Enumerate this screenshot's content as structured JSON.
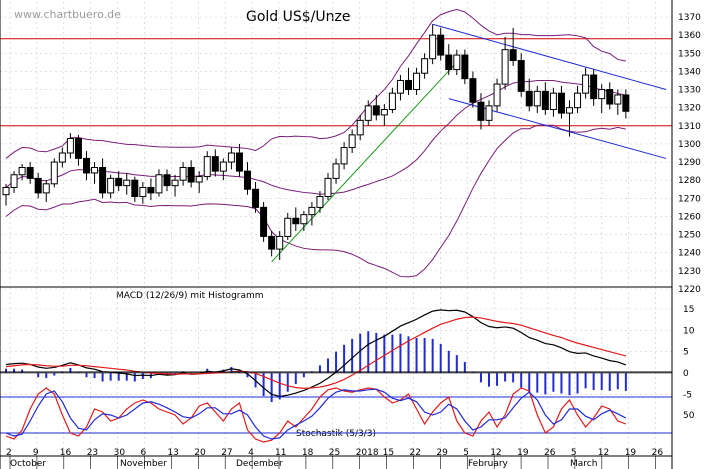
{
  "chart_data": [
    {
      "type": "candlestick",
      "title": "Gold US$/Unze",
      "watermark": "www.chartbuero.de",
      "ylim": [
        1220,
        1375
      ],
      "yticks": [
        1220,
        1230,
        1240,
        1250,
        1260,
        1270,
        1280,
        1290,
        1300,
        1310,
        1320,
        1330,
        1340,
        1350,
        1360,
        1370
      ],
      "overlays": [
        "bollinger-bands",
        "moving-average"
      ],
      "horizontal_lines": [
        1310,
        1358
      ],
      "trendlines": [
        "uptrend-green",
        "channel-upper-blue",
        "channel-lower-blue"
      ],
      "candles": [
        [
          1272,
          1278,
          1266,
          1276
        ],
        [
          1276,
          1285,
          1273,
          1283
        ],
        [
          1283,
          1289,
          1280,
          1287
        ],
        [
          1287,
          1290,
          1278,
          1281
        ],
        [
          1281,
          1284,
          1270,
          1273
        ],
        [
          1273,
          1280,
          1268,
          1278
        ],
        [
          1278,
          1292,
          1276,
          1290
        ],
        [
          1290,
          1298,
          1287,
          1295
        ],
        [
          1295,
          1306,
          1292,
          1303
        ],
        [
          1303,
          1305,
          1288,
          1292
        ],
        [
          1292,
          1296,
          1280,
          1284
        ],
        [
          1284,
          1290,
          1278,
          1287
        ],
        [
          1287,
          1292,
          1270,
          1273
        ],
        [
          1273,
          1283,
          1270,
          1281
        ],
        [
          1281,
          1285,
          1274,
          1277
        ],
        [
          1277,
          1284,
          1272,
          1280
        ],
        [
          1280,
          1282,
          1268,
          1271
        ],
        [
          1271,
          1279,
          1267,
          1276
        ],
        [
          1276,
          1281,
          1269,
          1273
        ],
        [
          1273,
          1286,
          1271,
          1283
        ],
        [
          1283,
          1286,
          1274,
          1277
        ],
        [
          1277,
          1283,
          1271,
          1280
        ],
        [
          1280,
          1290,
          1277,
          1287
        ],
        [
          1287,
          1291,
          1276,
          1279
        ],
        [
          1279,
          1285,
          1273,
          1282
        ],
        [
          1282,
          1296,
          1280,
          1293
        ],
        [
          1293,
          1297,
          1282,
          1285
        ],
        [
          1285,
          1292,
          1280,
          1290
        ],
        [
          1290,
          1298,
          1286,
          1295
        ],
        [
          1295,
          1300,
          1282,
          1285
        ],
        [
          1285,
          1290,
          1272,
          1275
        ],
        [
          1275,
          1279,
          1262,
          1265
        ],
        [
          1265,
          1268,
          1246,
          1249
        ],
        [
          1249,
          1252,
          1238,
          1242
        ],
        [
          1242,
          1252,
          1236,
          1249
        ],
        [
          1249,
          1262,
          1247,
          1259
        ],
        [
          1259,
          1265,
          1252,
          1256
        ],
        [
          1256,
          1263,
          1252,
          1261
        ],
        [
          1261,
          1268,
          1255,
          1265
        ],
        [
          1265,
          1274,
          1262,
          1271
        ],
        [
          1271,
          1284,
          1269,
          1281
        ],
        [
          1281,
          1292,
          1278,
          1289
        ],
        [
          1289,
          1301,
          1286,
          1298
        ],
        [
          1298,
          1308,
          1295,
          1305
        ],
        [
          1305,
          1316,
          1302,
          1313
        ],
        [
          1313,
          1324,
          1310,
          1321
        ],
        [
          1321,
          1327,
          1313,
          1316
        ],
        [
          1316,
          1322,
          1310,
          1319
        ],
        [
          1319,
          1331,
          1317,
          1328
        ],
        [
          1328,
          1338,
          1324,
          1335
        ],
        [
          1335,
          1342,
          1327,
          1330
        ],
        [
          1330,
          1342,
          1327,
          1339
        ],
        [
          1339,
          1350,
          1336,
          1347
        ],
        [
          1347,
          1366,
          1344,
          1360
        ],
        [
          1360,
          1364,
          1346,
          1349
        ],
        [
          1349,
          1355,
          1338,
          1341
        ],
        [
          1341,
          1352,
          1338,
          1349
        ],
        [
          1349,
          1352,
          1333,
          1336
        ],
        [
          1336,
          1340,
          1320,
          1323
        ],
        [
          1323,
          1328,
          1308,
          1313
        ],
        [
          1313,
          1324,
          1310,
          1321
        ],
        [
          1321,
          1336,
          1318,
          1333
        ],
        [
          1333,
          1359,
          1330,
          1352
        ],
        [
          1352,
          1364,
          1343,
          1346
        ],
        [
          1346,
          1350,
          1326,
          1329
        ],
        [
          1329,
          1336,
          1318,
          1321
        ],
        [
          1321,
          1332,
          1317,
          1329
        ],
        [
          1329,
          1334,
          1316,
          1319
        ],
        [
          1319,
          1331,
          1315,
          1328
        ],
        [
          1328,
          1332,
          1314,
          1317
        ],
        [
          1317,
          1324,
          1304,
          1320
        ],
        [
          1320,
          1332,
          1317,
          1328
        ],
        [
          1328,
          1342,
          1325,
          1338
        ],
        [
          1338,
          1341,
          1321,
          1325
        ],
        [
          1325,
          1333,
          1317,
          1330
        ],
        [
          1330,
          1334,
          1319,
          1322
        ],
        [
          1322,
          1330,
          1316,
          1327
        ],
        [
          1327,
          1330,
          1314,
          1318
        ]
      ],
      "x_tick_labels": [
        "2",
        "9",
        "16",
        "23",
        "30",
        "6",
        "13",
        "20",
        "27",
        "4",
        "11",
        "18",
        "25",
        "2018",
        "15",
        "22",
        "29",
        "5",
        "12",
        "19",
        "26",
        "5",
        "12",
        "19",
        "26"
      ],
      "month_labels": [
        "October",
        "November",
        "December",
        "February",
        "March"
      ]
    },
    {
      "type": "line",
      "title": "MACD (12/26/9) mit Histogramm",
      "ylim": [
        -8,
        18
      ],
      "yticks": [
        -5,
        0,
        5,
        10,
        15
      ],
      "series": [
        {
          "color": "#000000",
          "values": [
            2,
            2.2,
            2.3,
            2,
            1.4,
            1.1,
            1.3,
            1.8,
            2.4,
            1.9,
            1.2,
            0.9,
            0.3,
            0.2,
            0,
            -0.2,
            -0.6,
            -0.5,
            -0.6,
            -0.3,
            -0.5,
            -0.4,
            0,
            -0.3,
            -0.2,
            0.4,
            0.2,
            0.5,
            1,
            0.7,
            -0.2,
            -1.8,
            -3.5,
            -5,
            -5.5,
            -5.2,
            -4.7,
            -4.1,
            -3.3,
            -2.4,
            -1.2,
            0.2,
            1.8,
            3.5,
            5.2,
            6.7,
            7.7,
            8.6,
            9.8,
            11,
            11.8,
            12.6,
            13.6,
            14.5,
            14.8,
            14.6,
            14.7,
            14.3,
            13.2,
            11.8,
            10.9,
            10.6,
            10.8,
            10.5,
            9.5,
            8.3,
            7.7,
            6.9,
            6.6,
            5.9,
            5,
            4.6,
            4.7,
            4,
            3.5,
            2.9,
            2.6,
            1.9
          ]
        },
        {
          "color": "#e11b1b",
          "values": [
            1.5,
            1.7,
            1.9,
            2,
            1.9,
            1.7,
            1.6,
            1.6,
            1.8,
            1.8,
            1.7,
            1.5,
            1.3,
            1.1,
            0.9,
            0.7,
            0.4,
            0.2,
            0,
            -0.1,
            -0.2,
            -0.3,
            -0.2,
            -0.2,
            -0.2,
            -0.1,
            0,
            0.1,
            0.3,
            0.4,
            0.3,
            -0.1,
            -0.8,
            -1.6,
            -2.4,
            -3,
            -3.4,
            -3.6,
            -3.5,
            -3.3,
            -2.9,
            -2.3,
            -1.5,
            -0.5,
            0.6,
            1.8,
            3,
            4.1,
            5.3,
            6.4,
            7.5,
            8.5,
            9.5,
            10.5,
            11.4,
            12,
            12.6,
            13,
            13.1,
            12.9,
            12.5,
            12.1,
            11.8,
            11.6,
            11.2,
            10.6,
            10,
            9.4,
            8.8,
            8.3,
            7.6,
            7,
            6.5,
            6,
            5.5,
            5,
            4.5,
            4
          ]
        }
      ]
    },
    {
      "type": "line",
      "title": "Stochastik (5/3/3)",
      "ylim": [
        0,
        100
      ],
      "yticks": [
        50
      ],
      "levels": [
        20,
        80
      ],
      "series": [
        {
          "color": "#e11b1b",
          "values": [
            15,
            10,
            25,
            60,
            85,
            95,
            85,
            50,
            20,
            15,
            30,
            60,
            55,
            40,
            45,
            60,
            70,
            75,
            70,
            60,
            55,
            50,
            35,
            45,
            65,
            70,
            55,
            40,
            60,
            70,
            25,
            10,
            5,
            8,
            20,
            40,
            30,
            45,
            60,
            80,
            92,
            95,
            90,
            88,
            92,
            95,
            93,
            80,
            70,
            75,
            85,
            60,
            35,
            55,
            70,
            80,
            40,
            20,
            15,
            40,
            55,
            30,
            50,
            85,
            95,
            90,
            50,
            20,
            30,
            60,
            75,
            50,
            30,
            45,
            65,
            60,
            40,
            35
          ]
        },
        {
          "color": "#1f2bd6",
          "values": [
            20,
            15,
            18,
            40,
            65,
            85,
            90,
            72,
            45,
            28,
            25,
            42,
            52,
            50,
            45,
            50,
            60,
            70,
            72,
            68,
            62,
            55,
            47,
            45,
            52,
            62,
            62,
            52,
            52,
            58,
            50,
            30,
            15,
            10,
            12,
            25,
            33,
            40,
            48,
            62,
            78,
            88,
            92,
            90,
            90,
            92,
            93,
            88,
            78,
            74,
            78,
            72,
            55,
            50,
            55,
            68,
            60,
            40,
            25,
            30,
            42,
            42,
            45,
            62,
            78,
            88,
            75,
            50,
            35,
            42,
            60,
            60,
            48,
            42,
            52,
            58,
            52,
            45
          ]
        }
      ]
    }
  ]
}
